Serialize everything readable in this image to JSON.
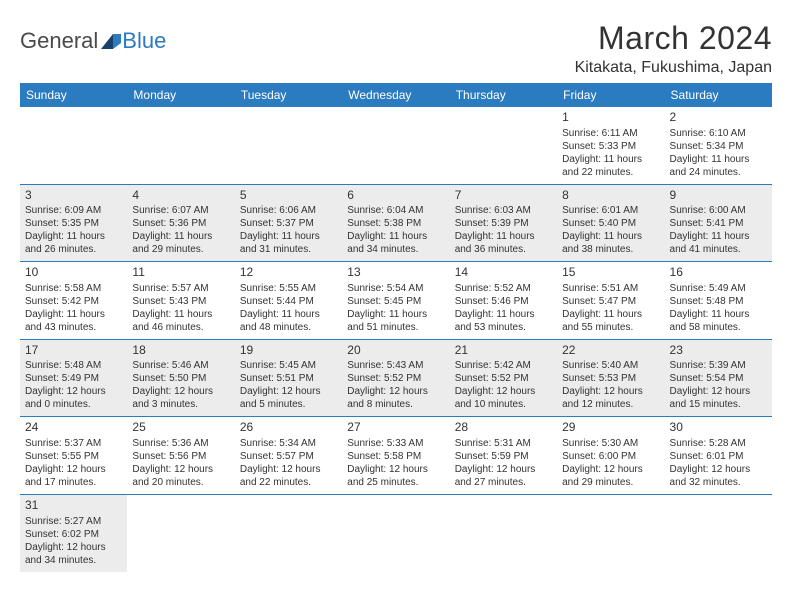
{
  "brand": {
    "part1": "General",
    "part2": "Blue"
  },
  "title": "March 2024",
  "location": "Kitakata, Fukushima, Japan",
  "day_headers": [
    "Sunday",
    "Monday",
    "Tuesday",
    "Wednesday",
    "Thursday",
    "Friday",
    "Saturday"
  ],
  "colors": {
    "header_bg": "#2a7bbf",
    "header_text": "#ffffff",
    "shaded_bg": "#ececec",
    "rule": "#2a7bbf",
    "body_text": "#333333"
  },
  "typography": {
    "title_fontsize": 32,
    "location_fontsize": 16,
    "dayhead_fontsize": 12,
    "daynum_fontsize": 12,
    "cell_fontsize": 10
  },
  "layout": {
    "cols": 7,
    "rows": 6,
    "first_day_col": 5
  },
  "weeks": [
    {
      "shaded": false,
      "days": [
        null,
        null,
        null,
        null,
        null,
        {
          "n": "1",
          "sr": "Sunrise: 6:11 AM",
          "ss": "Sunset: 5:33 PM",
          "dl": "Daylight: 11 hours and 22 minutes."
        },
        {
          "n": "2",
          "sr": "Sunrise: 6:10 AM",
          "ss": "Sunset: 5:34 PM",
          "dl": "Daylight: 11 hours and 24 minutes."
        }
      ]
    },
    {
      "shaded": true,
      "days": [
        {
          "n": "3",
          "sr": "Sunrise: 6:09 AM",
          "ss": "Sunset: 5:35 PM",
          "dl": "Daylight: 11 hours and 26 minutes."
        },
        {
          "n": "4",
          "sr": "Sunrise: 6:07 AM",
          "ss": "Sunset: 5:36 PM",
          "dl": "Daylight: 11 hours and 29 minutes."
        },
        {
          "n": "5",
          "sr": "Sunrise: 6:06 AM",
          "ss": "Sunset: 5:37 PM",
          "dl": "Daylight: 11 hours and 31 minutes."
        },
        {
          "n": "6",
          "sr": "Sunrise: 6:04 AM",
          "ss": "Sunset: 5:38 PM",
          "dl": "Daylight: 11 hours and 34 minutes."
        },
        {
          "n": "7",
          "sr": "Sunrise: 6:03 AM",
          "ss": "Sunset: 5:39 PM",
          "dl": "Daylight: 11 hours and 36 minutes."
        },
        {
          "n": "8",
          "sr": "Sunrise: 6:01 AM",
          "ss": "Sunset: 5:40 PM",
          "dl": "Daylight: 11 hours and 38 minutes."
        },
        {
          "n": "9",
          "sr": "Sunrise: 6:00 AM",
          "ss": "Sunset: 5:41 PM",
          "dl": "Daylight: 11 hours and 41 minutes."
        }
      ]
    },
    {
      "shaded": false,
      "days": [
        {
          "n": "10",
          "sr": "Sunrise: 5:58 AM",
          "ss": "Sunset: 5:42 PM",
          "dl": "Daylight: 11 hours and 43 minutes."
        },
        {
          "n": "11",
          "sr": "Sunrise: 5:57 AM",
          "ss": "Sunset: 5:43 PM",
          "dl": "Daylight: 11 hours and 46 minutes."
        },
        {
          "n": "12",
          "sr": "Sunrise: 5:55 AM",
          "ss": "Sunset: 5:44 PM",
          "dl": "Daylight: 11 hours and 48 minutes."
        },
        {
          "n": "13",
          "sr": "Sunrise: 5:54 AM",
          "ss": "Sunset: 5:45 PM",
          "dl": "Daylight: 11 hours and 51 minutes."
        },
        {
          "n": "14",
          "sr": "Sunrise: 5:52 AM",
          "ss": "Sunset: 5:46 PM",
          "dl": "Daylight: 11 hours and 53 minutes."
        },
        {
          "n": "15",
          "sr": "Sunrise: 5:51 AM",
          "ss": "Sunset: 5:47 PM",
          "dl": "Daylight: 11 hours and 55 minutes."
        },
        {
          "n": "16",
          "sr": "Sunrise: 5:49 AM",
          "ss": "Sunset: 5:48 PM",
          "dl": "Daylight: 11 hours and 58 minutes."
        }
      ]
    },
    {
      "shaded": true,
      "days": [
        {
          "n": "17",
          "sr": "Sunrise: 5:48 AM",
          "ss": "Sunset: 5:49 PM",
          "dl": "Daylight: 12 hours and 0 minutes."
        },
        {
          "n": "18",
          "sr": "Sunrise: 5:46 AM",
          "ss": "Sunset: 5:50 PM",
          "dl": "Daylight: 12 hours and 3 minutes."
        },
        {
          "n": "19",
          "sr": "Sunrise: 5:45 AM",
          "ss": "Sunset: 5:51 PM",
          "dl": "Daylight: 12 hours and 5 minutes."
        },
        {
          "n": "20",
          "sr": "Sunrise: 5:43 AM",
          "ss": "Sunset: 5:52 PM",
          "dl": "Daylight: 12 hours and 8 minutes."
        },
        {
          "n": "21",
          "sr": "Sunrise: 5:42 AM",
          "ss": "Sunset: 5:52 PM",
          "dl": "Daylight: 12 hours and 10 minutes."
        },
        {
          "n": "22",
          "sr": "Sunrise: 5:40 AM",
          "ss": "Sunset: 5:53 PM",
          "dl": "Daylight: 12 hours and 12 minutes."
        },
        {
          "n": "23",
          "sr": "Sunrise: 5:39 AM",
          "ss": "Sunset: 5:54 PM",
          "dl": "Daylight: 12 hours and 15 minutes."
        }
      ]
    },
    {
      "shaded": false,
      "days": [
        {
          "n": "24",
          "sr": "Sunrise: 5:37 AM",
          "ss": "Sunset: 5:55 PM",
          "dl": "Daylight: 12 hours and 17 minutes."
        },
        {
          "n": "25",
          "sr": "Sunrise: 5:36 AM",
          "ss": "Sunset: 5:56 PM",
          "dl": "Daylight: 12 hours and 20 minutes."
        },
        {
          "n": "26",
          "sr": "Sunrise: 5:34 AM",
          "ss": "Sunset: 5:57 PM",
          "dl": "Daylight: 12 hours and 22 minutes."
        },
        {
          "n": "27",
          "sr": "Sunrise: 5:33 AM",
          "ss": "Sunset: 5:58 PM",
          "dl": "Daylight: 12 hours and 25 minutes."
        },
        {
          "n": "28",
          "sr": "Sunrise: 5:31 AM",
          "ss": "Sunset: 5:59 PM",
          "dl": "Daylight: 12 hours and 27 minutes."
        },
        {
          "n": "29",
          "sr": "Sunrise: 5:30 AM",
          "ss": "Sunset: 6:00 PM",
          "dl": "Daylight: 12 hours and 29 minutes."
        },
        {
          "n": "30",
          "sr": "Sunrise: 5:28 AM",
          "ss": "Sunset: 6:01 PM",
          "dl": "Daylight: 12 hours and 32 minutes."
        }
      ]
    },
    {
      "shaded": true,
      "days": [
        {
          "n": "31",
          "sr": "Sunrise: 5:27 AM",
          "ss": "Sunset: 6:02 PM",
          "dl": "Daylight: 12 hours and 34 minutes."
        },
        null,
        null,
        null,
        null,
        null,
        null
      ]
    }
  ]
}
